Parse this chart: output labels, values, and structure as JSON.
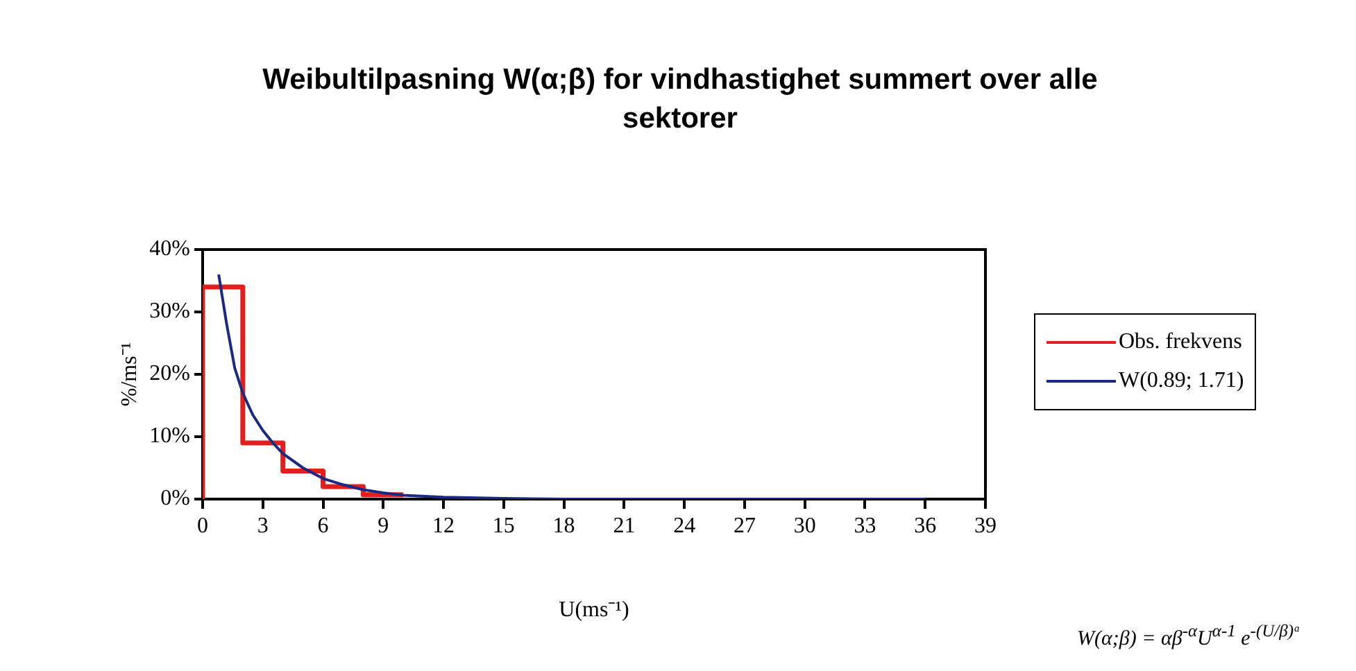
{
  "chart_data": {
    "type": "line",
    "title": "Weibultilpasning W(α;β) for vindhastighet summert over alle sektorer",
    "xlabel": "U(ms⁻¹)",
    "ylabel": "%/ms⁻¹",
    "xlim": [
      0,
      39
    ],
    "xticks": [
      0,
      3,
      6,
      9,
      12,
      15,
      18,
      21,
      24,
      27,
      30,
      33,
      36,
      39
    ],
    "ylim": [
      0,
      40
    ],
    "yticks": [
      {
        "value": 0,
        "label": "0%"
      },
      {
        "value": 10,
        "label": "10%"
      },
      {
        "value": 20,
        "label": "20%"
      },
      {
        "value": 30,
        "label": "30%"
      },
      {
        "value": 40,
        "label": "40%"
      }
    ],
    "grid": false,
    "legend": "right",
    "marker": "none",
    "line_style": "solid",
    "series": [
      {
        "name": "Obs. frekvens",
        "type": "step",
        "color": "#e0201e",
        "x": [
          0,
          0,
          2,
          4,
          6,
          8,
          10
        ],
        "values": [
          0,
          34,
          9,
          4.5,
          2,
          0.7,
          0.7
        ]
      },
      {
        "name": "W(0.89; 1.71)",
        "type": "line",
        "color": "#1a2a80",
        "x": [
          0.8,
          1.2,
          1.6,
          2,
          2.5,
          3,
          3.5,
          4,
          5,
          6,
          7,
          8,
          9,
          10,
          12,
          15,
          18,
          24,
          30,
          36
        ],
        "values": [
          36,
          28,
          21,
          17,
          13.5,
          11,
          9,
          7.3,
          5,
          3.3,
          2.3,
          1.5,
          1,
          0.6,
          0.3,
          0.1,
          0,
          0,
          0,
          0
        ]
      }
    ],
    "annotations": [
      "W(α;β) = αβ$^{-α}$U$^{α-1}$ e$^{-(U/β)ᵅ}$"
    ]
  }
}
